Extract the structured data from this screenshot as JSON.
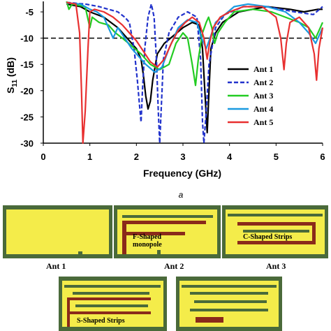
{
  "chart_data": {
    "type": "line",
    "xlabel": "Frequency (GHz)",
    "ylabel": "S11 (dB)",
    "ylabel_main": "S",
    "ylabel_sub": "11",
    "ylabel_unit": " (dB)",
    "xlim": [
      0,
      6
    ],
    "ylim": [
      -30,
      -3
    ],
    "x_ticks": [
      "0",
      "1",
      "2",
      "3",
      "4",
      "5",
      "6"
    ],
    "y_ticks": [
      "-5",
      "-10",
      "-15",
      "-20",
      "-25",
      "-30"
    ],
    "reference_line": {
      "y": -10,
      "style": "dashed"
    },
    "legend_position": "right",
    "series": [
      {
        "name": "Ant 1",
        "color": "#000000",
        "dash": "",
        "points": [
          [
            0.5,
            -3.5
          ],
          [
            0.8,
            -4
          ],
          [
            1.0,
            -5
          ],
          [
            1.3,
            -6
          ],
          [
            1.6,
            -8
          ],
          [
            1.8,
            -10
          ],
          [
            2.0,
            -12
          ],
          [
            2.1,
            -14
          ],
          [
            2.15,
            -17
          ],
          [
            2.2,
            -21
          ],
          [
            2.25,
            -23.5
          ],
          [
            2.3,
            -22
          ],
          [
            2.35,
            -18
          ],
          [
            2.45,
            -13
          ],
          [
            2.6,
            -11
          ],
          [
            2.8,
            -9.5
          ],
          [
            3.0,
            -8
          ],
          [
            3.2,
            -7
          ],
          [
            3.35,
            -7.5
          ],
          [
            3.42,
            -12
          ],
          [
            3.47,
            -20
          ],
          [
            3.52,
            -28
          ],
          [
            3.56,
            -20
          ],
          [
            3.6,
            -12
          ],
          [
            3.7,
            -9
          ],
          [
            3.85,
            -7
          ],
          [
            4.2,
            -5
          ],
          [
            4.8,
            -4
          ],
          [
            5.3,
            -4.5
          ],
          [
            5.6,
            -5
          ],
          [
            5.9,
            -4.5
          ],
          [
            6.0,
            -4.5
          ]
        ]
      },
      {
        "name": "Ant 2",
        "color": "#2233cc",
        "dash": "6,3",
        "points": [
          [
            0.5,
            -3.2
          ],
          [
            0.9,
            -3.5
          ],
          [
            1.2,
            -4
          ],
          [
            1.4,
            -4.5
          ],
          [
            1.6,
            -5
          ],
          [
            1.75,
            -6
          ],
          [
            1.85,
            -7
          ],
          [
            1.95,
            -12
          ],
          [
            2.02,
            -18
          ],
          [
            2.06,
            -22
          ],
          [
            2.1,
            -26
          ],
          [
            2.13,
            -20
          ],
          [
            2.18,
            -12
          ],
          [
            2.25,
            -6
          ],
          [
            2.32,
            -3.5
          ],
          [
            2.38,
            -6
          ],
          [
            2.43,
            -14
          ],
          [
            2.47,
            -24
          ],
          [
            2.5,
            -30
          ],
          [
            2.53,
            -24
          ],
          [
            2.58,
            -14
          ],
          [
            2.7,
            -9
          ],
          [
            2.9,
            -6
          ],
          [
            3.1,
            -5
          ],
          [
            3.3,
            -6
          ],
          [
            3.38,
            -14
          ],
          [
            3.42,
            -26
          ],
          [
            3.45,
            -30
          ],
          [
            3.5,
            -24
          ],
          [
            3.56,
            -15
          ],
          [
            3.7,
            -8
          ],
          [
            3.9,
            -5.5
          ],
          [
            4.3,
            -4
          ],
          [
            4.8,
            -4
          ],
          [
            5.4,
            -5
          ],
          [
            5.8,
            -5.5
          ],
          [
            6.0,
            -4
          ]
        ]
      },
      {
        "name": "Ant 3",
        "color": "#22cc22",
        "dash": "",
        "points": [
          [
            0.5,
            -3
          ],
          [
            0.55,
            -4.5
          ],
          [
            0.62,
            -3.5
          ],
          [
            0.9,
            -4
          ],
          [
            1.0,
            -8
          ],
          [
            1.05,
            -6
          ],
          [
            1.2,
            -7
          ],
          [
            1.4,
            -7.5
          ],
          [
            1.55,
            -9
          ],
          [
            1.7,
            -10
          ],
          [
            1.9,
            -11.5
          ],
          [
            2.1,
            -13
          ],
          [
            2.3,
            -15
          ],
          [
            2.5,
            -16
          ],
          [
            2.7,
            -15
          ],
          [
            2.85,
            -11
          ],
          [
            3.0,
            -9
          ],
          [
            3.1,
            -10
          ],
          [
            3.2,
            -15
          ],
          [
            3.27,
            -19
          ],
          [
            3.33,
            -14
          ],
          [
            3.42,
            -9
          ],
          [
            3.5,
            -7
          ],
          [
            3.55,
            -6
          ],
          [
            3.62,
            -8
          ],
          [
            3.68,
            -11
          ],
          [
            3.75,
            -9
          ],
          [
            3.9,
            -7
          ],
          [
            4.1,
            -5
          ],
          [
            4.5,
            -4.5
          ],
          [
            4.9,
            -5
          ],
          [
            5.2,
            -6
          ],
          [
            5.5,
            -7
          ],
          [
            5.7,
            -8
          ],
          [
            5.85,
            -10
          ],
          [
            5.95,
            -8
          ],
          [
            6.0,
            -7
          ]
        ]
      },
      {
        "name": "Ant 4",
        "color": "#1a9ae0",
        "dash": "",
        "points": [
          [
            0.5,
            -3.3
          ],
          [
            0.8,
            -3.5
          ],
          [
            1.0,
            -4.5
          ],
          [
            1.15,
            -5
          ],
          [
            1.3,
            -6
          ],
          [
            1.4,
            -8
          ],
          [
            1.5,
            -10
          ],
          [
            1.6,
            -8
          ],
          [
            1.75,
            -10
          ],
          [
            1.9,
            -12
          ],
          [
            2.05,
            -13.5
          ],
          [
            2.2,
            -15
          ],
          [
            2.4,
            -16.5
          ],
          [
            2.55,
            -15.5
          ],
          [
            2.7,
            -12
          ],
          [
            2.9,
            -8
          ],
          [
            3.1,
            -6.5
          ],
          [
            3.3,
            -7
          ],
          [
            3.4,
            -10
          ],
          [
            3.5,
            -12
          ],
          [
            3.58,
            -10
          ],
          [
            3.7,
            -7
          ],
          [
            3.9,
            -5.5
          ],
          [
            4.1,
            -4
          ],
          [
            4.4,
            -3.5
          ],
          [
            4.8,
            -4
          ],
          [
            5.2,
            -5
          ],
          [
            5.5,
            -7
          ],
          [
            5.7,
            -9
          ],
          [
            5.85,
            -11
          ],
          [
            5.95,
            -9
          ],
          [
            6.0,
            -8
          ]
        ]
      },
      {
        "name": "Ant 5",
        "color": "#e83030",
        "dash": "",
        "points": [
          [
            0.5,
            -3.2
          ],
          [
            0.7,
            -3.5
          ],
          [
            0.78,
            -9
          ],
          [
            0.82,
            -20
          ],
          [
            0.85,
            -30
          ],
          [
            0.9,
            -24
          ],
          [
            0.96,
            -12
          ],
          [
            1.0,
            -5
          ],
          [
            1.1,
            -4.5
          ],
          [
            1.3,
            -5
          ],
          [
            1.5,
            -6
          ],
          [
            1.7,
            -7.5
          ],
          [
            1.85,
            -9
          ],
          [
            2.0,
            -10.5
          ],
          [
            2.15,
            -12.5
          ],
          [
            2.3,
            -14.5
          ],
          [
            2.45,
            -15.5
          ],
          [
            2.6,
            -14
          ],
          [
            2.75,
            -11
          ],
          [
            2.9,
            -8.5
          ],
          [
            3.05,
            -7
          ],
          [
            3.2,
            -6
          ],
          [
            3.35,
            -7
          ],
          [
            3.45,
            -10
          ],
          [
            3.52,
            -14
          ],
          [
            3.57,
            -11
          ],
          [
            3.65,
            -8
          ],
          [
            3.8,
            -6
          ],
          [
            4.0,
            -5
          ],
          [
            4.3,
            -4
          ],
          [
            4.7,
            -4
          ],
          [
            5.0,
            -6
          ],
          [
            5.1,
            -10
          ],
          [
            5.17,
            -16
          ],
          [
            5.22,
            -11
          ],
          [
            5.3,
            -7
          ],
          [
            5.5,
            -6
          ],
          [
            5.7,
            -8
          ],
          [
            5.82,
            -13
          ],
          [
            5.87,
            -18
          ],
          [
            5.92,
            -12
          ],
          [
            6.0,
            -8
          ]
        ]
      }
    ]
  },
  "panel_letter": "a",
  "antennas": {
    "ant1": {
      "caption": "Ant 1"
    },
    "ant2": {
      "caption": "Ant 2",
      "callout": "F-Shaped\nmonopole"
    },
    "ant3": {
      "caption": "Ant 3",
      "callout": "C-Shaped Strips"
    },
    "ant4": {
      "callout": "S-Shaped Strips"
    },
    "ant5": {
      "callout": ""
    }
  }
}
